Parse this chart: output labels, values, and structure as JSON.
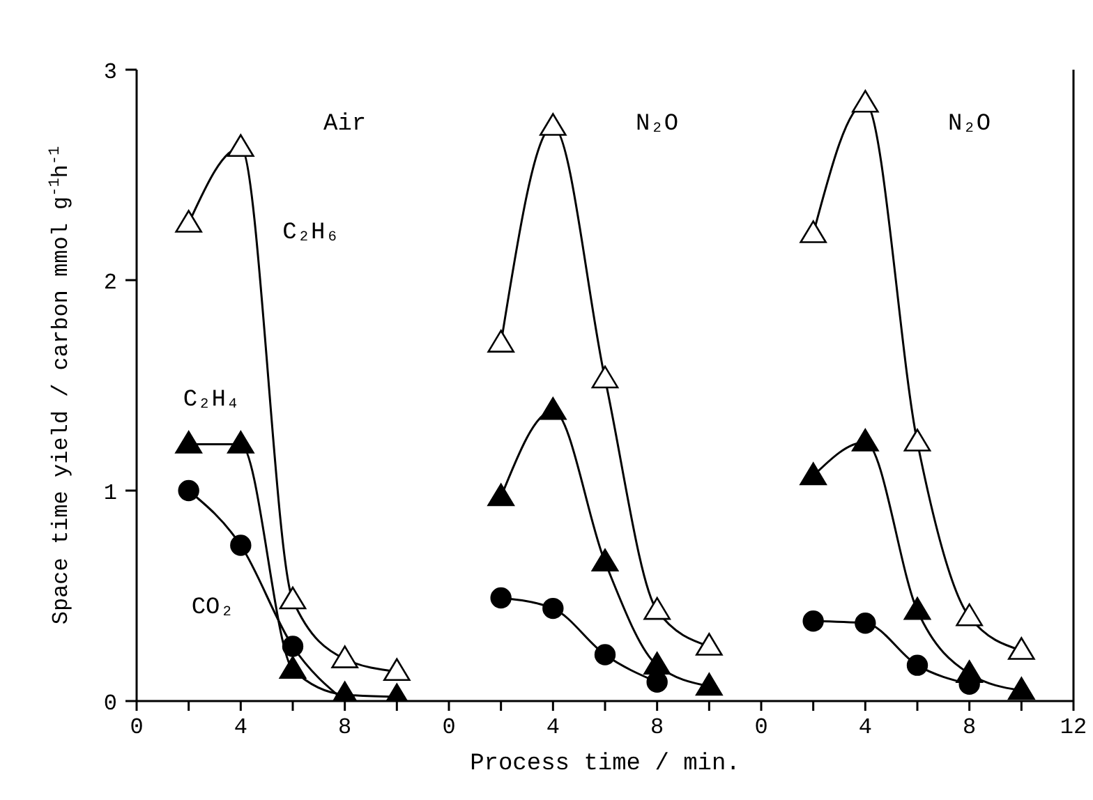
{
  "chart_data": [
    {
      "type": "line",
      "ylabel": "Space time yield / carbon mmol g$^{-1}$h$^{-1}$",
      "annotations": [
        "Air"
      ],
      "x": [
        2,
        4,
        6,
        8,
        10
      ],
      "xlim": [
        0,
        12
      ],
      "xticks": [
        0,
        {
          "value": 2,
          "label": null
        },
        4,
        {
          "value": 6,
          "label": null
        },
        8,
        {
          "value": 10,
          "label": null
        }
      ],
      "ylim": [
        0,
        3
      ],
      "yticks": [
        0,
        1,
        2,
        3
      ],
      "legend": false,
      "grid": false,
      "series": [
        {
          "name": "C₂H₆",
          "color": "#000000",
          "marker": "triangle",
          "values": [
            2.27,
            2.63,
            0.48,
            0.2,
            0.14
          ]
        },
        {
          "name": "C₂H₄",
          "color": "#000000",
          "marker": "triangle",
          "values": [
            1.22,
            1.22,
            0.15,
            0.03,
            0.02
          ]
        },
        {
          "name": "CO₂",
          "color": "#000000",
          "marker": "circle",
          "values": [
            1.0,
            0.74,
            0.26,
            0.0,
            null
          ]
        }
      ]
    },
    {
      "type": "line",
      "xlabel": "Process time / min.",
      "annotations": [
        "N₂O"
      ],
      "x": [
        2,
        4,
        6,
        8,
        10
      ],
      "xlim": [
        0,
        12
      ],
      "xticks": [
        0,
        {
          "value": 2,
          "label": null
        },
        4,
        {
          "value": 6,
          "label": null
        },
        8,
        {
          "value": 10,
          "label": null
        }
      ],
      "ylim": [
        0,
        3
      ],
      "yticks": [
        0,
        1,
        2,
        3
      ],
      "tick_labels": "x",
      "legend": false,
      "grid": false,
      "series": [
        {
          "color": "#000000",
          "marker": "triangle",
          "values": [
            1.7,
            2.73,
            1.53,
            0.43,
            0.26
          ]
        },
        {
          "color": "#000000",
          "marker": "triangle",
          "values": [
            0.97,
            1.38,
            0.66,
            0.17,
            0.07
          ]
        },
        {
          "color": "#000000",
          "marker": "circle",
          "values": [
            0.49,
            0.44,
            0.22,
            0.09,
            null
          ]
        }
      ]
    },
    {
      "type": "line",
      "annotations": [
        "N₂O"
      ],
      "x": [
        2,
        4,
        6,
        8,
        10
      ],
      "xlim": [
        0,
        12
      ],
      "xticks": [
        0,
        {
          "value": 2,
          "label": null
        },
        4,
        {
          "value": 6,
          "label": null
        },
        8,
        {
          "value": 10,
          "label": null
        },
        12
      ],
      "ylim": [
        0,
        3
      ],
      "yticks": [
        0,
        1,
        2,
        3
      ],
      "tick_labels": "x",
      "legend": false,
      "grid": false,
      "series": [
        {
          "color": "#000000",
          "marker": "triangle",
          "values": [
            2.22,
            2.84,
            1.23,
            0.4,
            0.24
          ]
        },
        {
          "color": "#000000",
          "marker": "triangle",
          "values": [
            1.07,
            1.23,
            0.43,
            0.13,
            0.05
          ]
        },
        {
          "color": "#000000",
          "marker": "circle",
          "values": [
            0.38,
            0.37,
            0.17,
            0.08,
            null
          ]
        }
      ]
    }
  ]
}
